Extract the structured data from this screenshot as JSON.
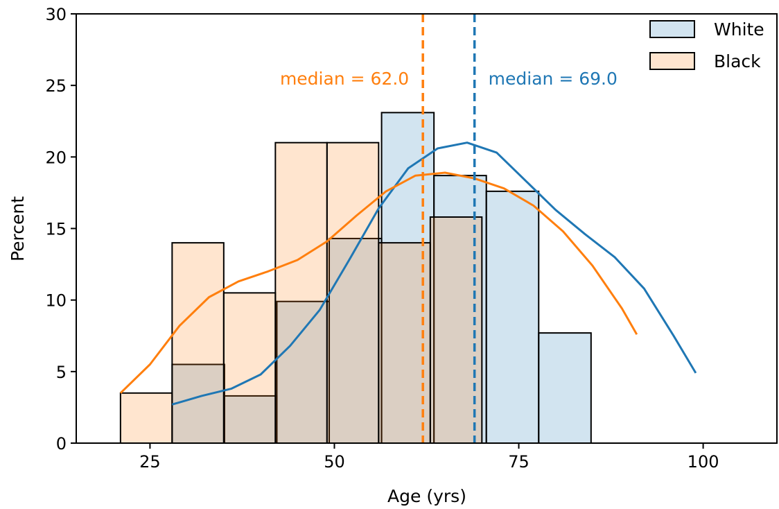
{
  "chart_data": {
    "type": "histogram",
    "title": "",
    "xlabel": "Age (yrs)",
    "ylabel": "Percent",
    "xlim": [
      15,
      110
    ],
    "ylim": [
      0,
      30
    ],
    "xticks": [
      25,
      50,
      75,
      100
    ],
    "yticks": [
      0,
      5,
      10,
      15,
      20,
      25,
      30
    ],
    "grid": false,
    "legend_position": "top-right",
    "series": [
      {
        "name": "White",
        "fill": "#1f77b4",
        "line_color": "#1f77b4",
        "bins": [
          {
            "x0": 28,
            "x1": 35.1,
            "value": 5.5
          },
          {
            "x0": 35.1,
            "x1": 42.2,
            "value": 3.3
          },
          {
            "x0": 42.2,
            "x1": 49.3,
            "value": 9.9
          },
          {
            "x0": 49.3,
            "x1": 56.4,
            "value": 14.3
          },
          {
            "x0": 56.4,
            "x1": 63.5,
            "value": 23.1
          },
          {
            "x0": 63.5,
            "x1": 70.6,
            "value": 18.7
          },
          {
            "x0": 70.6,
            "x1": 77.7,
            "value": 17.6
          },
          {
            "x0": 77.7,
            "x1": 84.8,
            "value": 7.7
          }
        ],
        "kde": [
          [
            28,
            2.7
          ],
          [
            32,
            3.3
          ],
          [
            36,
            3.8
          ],
          [
            40,
            4.8
          ],
          [
            44,
            6.8
          ],
          [
            48,
            9.3
          ],
          [
            52,
            12.8
          ],
          [
            56,
            16.4
          ],
          [
            60,
            19.2
          ],
          [
            64,
            20.6
          ],
          [
            68,
            21.0
          ],
          [
            72,
            20.3
          ],
          [
            76,
            18.3
          ],
          [
            80,
            16.3
          ],
          [
            84,
            14.6
          ],
          [
            88,
            13.0
          ],
          [
            92,
            10.8
          ],
          [
            96,
            7.5
          ],
          [
            99,
            4.9
          ]
        ],
        "median": 69.0,
        "median_label": "median = 69.0"
      },
      {
        "name": "Black",
        "fill": "#ff7f0e",
        "line_color": "#ff7f0e",
        "bins": [
          {
            "x0": 21,
            "x1": 28.0,
            "value": 3.5
          },
          {
            "x0": 28.0,
            "x1": 35.0,
            "value": 14.0
          },
          {
            "x0": 35.0,
            "x1": 42.0,
            "value": 10.5
          },
          {
            "x0": 42.0,
            "x1": 49.0,
            "value": 21.0
          },
          {
            "x0": 49.0,
            "x1": 56.0,
            "value": 21.0
          },
          {
            "x0": 56.0,
            "x1": 63.0,
            "value": 14.0
          },
          {
            "x0": 63.0,
            "x1": 70.0,
            "value": 15.8
          }
        ],
        "kde": [
          [
            21,
            3.5
          ],
          [
            25,
            5.5
          ],
          [
            29,
            8.2
          ],
          [
            33,
            10.2
          ],
          [
            37,
            11.3
          ],
          [
            41,
            12.0
          ],
          [
            45,
            12.8
          ],
          [
            49,
            14.1
          ],
          [
            53,
            15.9
          ],
          [
            57,
            17.6
          ],
          [
            61,
            18.7
          ],
          [
            65,
            18.9
          ],
          [
            69,
            18.5
          ],
          [
            73,
            17.8
          ],
          [
            77,
            16.6
          ],
          [
            81,
            14.8
          ],
          [
            85,
            12.4
          ],
          [
            89,
            9.4
          ],
          [
            91,
            7.6
          ]
        ],
        "median": 62.0,
        "median_label": "median = 62.0"
      }
    ]
  }
}
